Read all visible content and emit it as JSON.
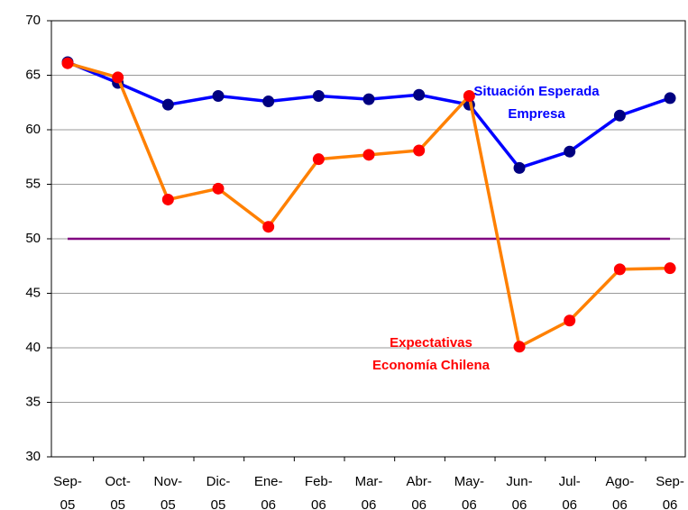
{
  "chart_data": {
    "type": "line",
    "categories": [
      "Sep-05",
      "Oct-05",
      "Nov-05",
      "Dic-05",
      "Ene-06",
      "Feb-06",
      "Mar-06",
      "Abr-06",
      "May-06",
      "Jun-06",
      "Jul-06",
      "Ago-06",
      "Sep-06"
    ],
    "series": [
      {
        "color": "#0000ff",
        "marker_color": "#000080",
        "values": [
          66.2,
          64.3,
          62.3,
          63.1,
          62.6,
          63.1,
          62.8,
          63.2,
          62.3,
          56.5,
          58.0,
          61.3,
          62.9
        ]
      },
      {
        "color": "#ff8000",
        "marker_color": "#ff0000",
        "values": [
          66.1,
          64.8,
          53.6,
          54.6,
          51.1,
          57.3,
          57.7,
          58.1,
          63.1,
          40.1,
          42.5,
          47.2,
          47.3
        ]
      }
    ],
    "reference_line": {
      "value": 50,
      "color": "#800080"
    },
    "annotations": [
      {
        "text": "Situación Esperada",
        "color": "#0000ff"
      },
      {
        "text": "Empresa",
        "color": "#0000ff"
      },
      {
        "text": "Expectativas",
        "color": "#ff0000"
      },
      {
        "text": "Economía Chilena",
        "color": "#ff0000"
      }
    ],
    "ylim": [
      30,
      70
    ],
    "yticks": [
      30,
      35,
      40,
      45,
      50,
      55,
      60,
      65,
      70
    ],
    "grid": true
  }
}
